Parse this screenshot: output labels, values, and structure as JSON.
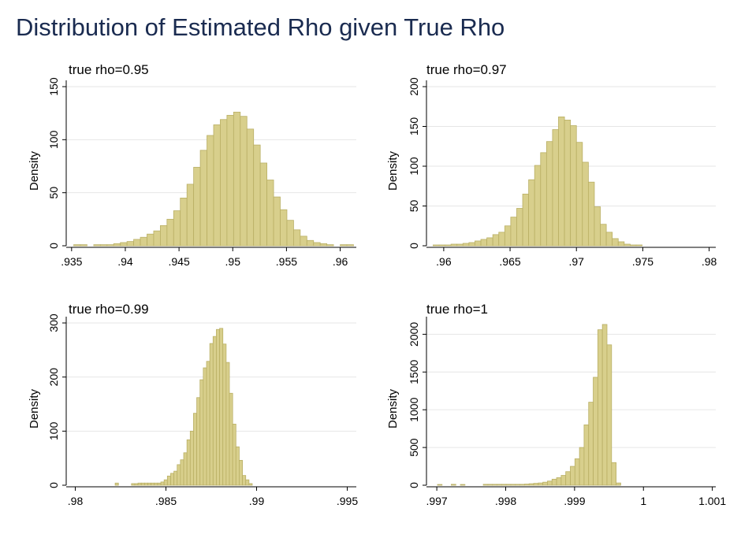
{
  "title": "Distribution of Estimated Rho given True Rho",
  "colors": {
    "title": "#1a2b50",
    "bar_fill": "#d8cf8c",
    "bar_edge": "#b9af64",
    "grid": "#e6e6e6"
  },
  "chart_data": [
    {
      "type": "bar",
      "title": "true rho=0.95",
      "ylabel": "Density",
      "xlim": [
        0.9345,
        0.9615
      ],
      "ylim": [
        0,
        150
      ],
      "grid": true,
      "xticks": [
        0.935,
        0.94,
        0.945,
        0.95,
        0.955,
        0.96
      ],
      "xtick_labels": [
        ".935",
        ".94",
        ".945",
        ".95",
        ".955",
        ".96"
      ],
      "yticks": [
        0,
        50,
        100,
        150
      ],
      "ytick_labels": [
        "0",
        "50",
        "100",
        "150"
      ],
      "bin_start": 0.9352,
      "bin_width": 0.00062,
      "values": [
        1,
        1,
        0,
        1,
        1,
        1,
        2,
        3,
        4,
        6,
        8,
        11,
        14,
        19,
        25,
        33,
        45,
        58,
        74,
        90,
        104,
        114,
        119,
        123,
        126,
        122,
        110,
        95,
        78,
        62,
        46,
        34,
        24,
        15,
        9,
        5,
        3,
        2,
        1,
        0,
        1,
        1
      ]
    },
    {
      "type": "bar",
      "title": "true rho=0.97",
      "ylabel": "Density",
      "xlim": [
        0.9587,
        0.9805
      ],
      "ylim": [
        0,
        200
      ],
      "grid": true,
      "xticks": [
        0.96,
        0.965,
        0.97,
        0.975,
        0.98
      ],
      "xtick_labels": [
        ".96",
        ".965",
        ".97",
        ".975",
        ".98"
      ],
      "yticks": [
        0,
        50,
        100,
        150,
        200
      ],
      "ytick_labels": [
        "0",
        "50",
        "100",
        "150",
        "200"
      ],
      "bin_start": 0.9592,
      "bin_width": 0.00045,
      "values": [
        1,
        1,
        1,
        2,
        2,
        3,
        4,
        6,
        8,
        10,
        14,
        17,
        25,
        36,
        47,
        65,
        83,
        101,
        117,
        131,
        146,
        162,
        158,
        151,
        130,
        105,
        80,
        49,
        27,
        17,
        9,
        5,
        2,
        1,
        1,
        0
      ]
    },
    {
      "type": "bar",
      "title": "true rho=0.99",
      "ylabel": "Density",
      "xlim": [
        0.9795,
        0.9955
      ],
      "ylim": [
        0,
        300
      ],
      "grid": true,
      "xticks": [
        0.98,
        0.985,
        0.99,
        0.995
      ],
      "xtick_labels": [
        ".98",
        ".985",
        ".99",
        ".995"
      ],
      "yticks": [
        0,
        100,
        200,
        300
      ],
      "ytick_labels": [
        "0",
        "100",
        "200",
        "300"
      ],
      "bin_start": 0.9822,
      "bin_width": 0.00018,
      "values": [
        4,
        0,
        0,
        0,
        0,
        3,
        3,
        4,
        4,
        4,
        4,
        4,
        4,
        4,
        6,
        10,
        17,
        22,
        26,
        38,
        47,
        60,
        84,
        100,
        133,
        162,
        195,
        217,
        229,
        262,
        275,
        288,
        290,
        261,
        227,
        170,
        113,
        71,
        46,
        18,
        10,
        3
      ]
    },
    {
      "type": "bar",
      "title": "true rho=1",
      "ylabel": "Density",
      "xlim": [
        0.99685,
        1.00105
      ],
      "ylim": [
        0,
        2150
      ],
      "grid": true,
      "xticks": [
        0.997,
        0.998,
        0.999,
        1.0,
        1.001
      ],
      "xtick_labels": [
        ".997",
        ".998",
        ".999",
        "1",
        "1.001"
      ],
      "yticks": [
        0,
        500,
        1000,
        1500,
        2000
      ],
      "ytick_labels": [
        "0",
        "500",
        "1000",
        "1500",
        "2000"
      ],
      "bin_start": 0.99701,
      "bin_width": 6.65e-05,
      "values": [
        10,
        0,
        0,
        12,
        0,
        10,
        0,
        0,
        0,
        0,
        12,
        12,
        12,
        12,
        12,
        12,
        12,
        12,
        12,
        15,
        20,
        25,
        30,
        40,
        55,
        80,
        100,
        130,
        180,
        250,
        350,
        500,
        800,
        1100,
        1430,
        2060,
        2130,
        1860,
        300,
        30,
        0
      ]
    }
  ]
}
